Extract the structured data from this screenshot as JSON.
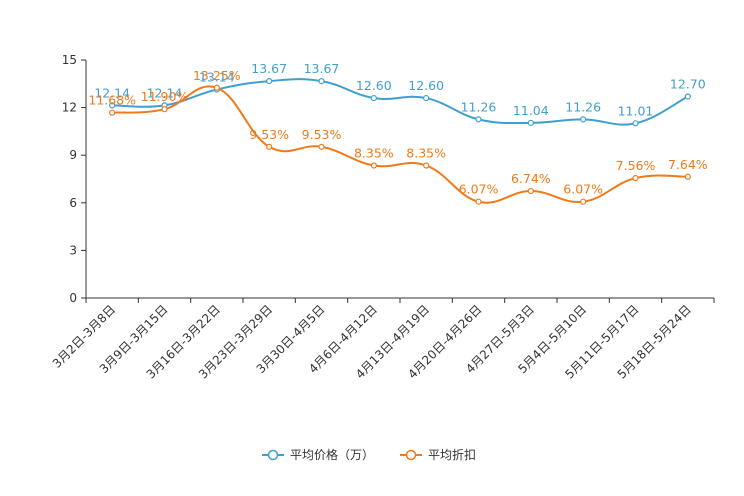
{
  "chart_data": {
    "type": "line",
    "title": "",
    "xlabel": "",
    "ylabel": "",
    "ylim": [
      0,
      15
    ],
    "yticks": [
      "0",
      "3",
      "6",
      "9",
      "12",
      "15"
    ],
    "grid": false,
    "legend_position": "bottom",
    "categories": [
      "3月2日-3月8日",
      "3月9日-3月15日",
      "3月16日-3月22日",
      "3月23日-3月29日",
      "3月30日-4月5日",
      "4月6日-4月12日",
      "4月13日-4月19日",
      "4月20日-4月26日",
      "4月27日-5月3日",
      "5月4日-5月10日",
      "5月11日-5月17日",
      "5月18日-5月24日"
    ],
    "series": [
      {
        "name": "平均价格（万）",
        "color": "#3fa0d0",
        "values": [
          12.14,
          12.14,
          13.14,
          13.67,
          13.67,
          12.6,
          12.6,
          11.26,
          11.04,
          11.26,
          11.01,
          12.7
        ],
        "labels": [
          "12.14",
          "12.14",
          "13.14",
          "13.67",
          "13.67",
          "12.60",
          "12.60",
          "11.26",
          "11.04",
          "11.26",
          "11.01",
          "12.70"
        ]
      },
      {
        "name": "平均折扣",
        "color": "#f07a1a",
        "values": [
          11.68,
          11.9,
          13.25,
          9.53,
          9.53,
          8.35,
          8.35,
          6.07,
          6.74,
          6.07,
          7.56,
          7.64
        ],
        "labels": [
          "11.68%",
          "11.90%",
          "13.25%",
          "9.53%",
          "9.53%",
          "8.35%",
          "8.35%",
          "6.07%",
          "6.74%",
          "6.07%",
          "7.56%",
          "7.64%"
        ]
      }
    ]
  }
}
